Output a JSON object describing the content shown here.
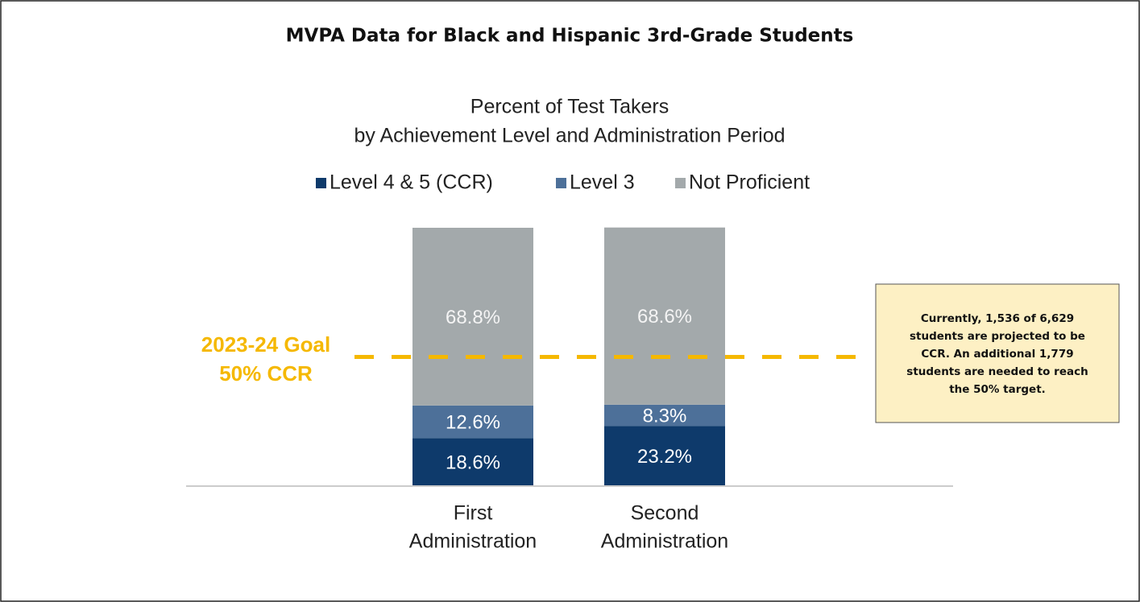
{
  "chart_data": {
    "type": "stacked_bar",
    "title": "MVPA Data for Black and Hispanic 3rd-Grade Students",
    "subtitle": [
      "Percent of Test Takers",
      "by Achievement Level and Administration Period"
    ],
    "categories": [
      [
        "First",
        "Administration"
      ],
      [
        "Second",
        "Administration"
      ]
    ],
    "series": [
      {
        "name": "Level 4 & 5 (CCR)",
        "color": "#0e3a6b",
        "values": [
          18.6,
          23.2
        ],
        "value_labels": [
          "18.6%",
          "23.2%"
        ]
      },
      {
        "name": "Level 3",
        "color": "#4d7099",
        "values": [
          12.6,
          8.3
        ],
        "value_labels": [
          "12.6%",
          "8.3%"
        ]
      },
      {
        "name": "Not Proficient",
        "color": "#a3a9ab",
        "values": [
          68.8,
          68.6
        ],
        "value_labels": [
          "68.8%",
          "68.6%"
        ]
      }
    ],
    "ylim": [
      0,
      100
    ],
    "goal": 50,
    "goal_label": [
      "2023-24 Goal",
      "50% CCR"
    ],
    "goal_color": "#f5b800",
    "annotation": [
      "Currently, 1,536 of 6,629",
      "students are projected to be",
      "CCR. An additional 1,779",
      "students are needed to reach",
      "the 50% target."
    ]
  }
}
